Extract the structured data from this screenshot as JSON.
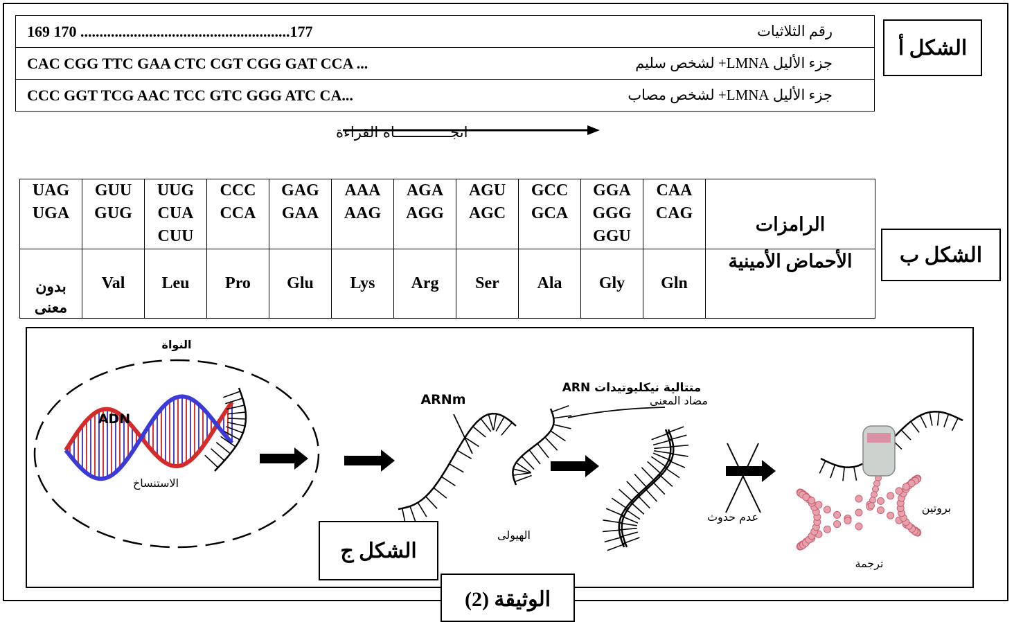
{
  "figure_a": {
    "label": "الشكل أ",
    "rows": [
      [
        "169   170 .......................................................177",
        "رقم الثلاثيات"
      ],
      [
        "CAC CGG TTC GAA CTC CGT CGG GAT CCA ...",
        "جزء الأليل LMNA+ لشخص سليم"
      ],
      [
        "CCC GGT TCG AAC TCC GTC GGG ATC CA...",
        "جزء الأليل LMNA+ لشخص مصاب"
      ]
    ],
    "reading_direction": "اتجـــــــــــــاه القراءة"
  },
  "figure_b": {
    "label": "الشكل ب",
    "codons_header": "الرامزات",
    "amino_header": "الأحماض الأمينية",
    "columns": [
      {
        "codons": [
          "UAG",
          "UGA"
        ],
        "amino": "بدون معنى"
      },
      {
        "codons": [
          "GUU",
          "GUG"
        ],
        "amino": "Val"
      },
      {
        "codons": [
          "UUG",
          "CUA",
          "CUU"
        ],
        "amino": "Leu"
      },
      {
        "codons": [
          "CCC",
          "CCA"
        ],
        "amino": "Pro"
      },
      {
        "codons": [
          "GAG",
          "GAA"
        ],
        "amino": "Glu"
      },
      {
        "codons": [
          "AAA",
          "AAG"
        ],
        "amino": "Lys"
      },
      {
        "codons": [
          "AGA",
          "AGG"
        ],
        "amino": "Arg"
      },
      {
        "codons": [
          "AGU",
          "AGC"
        ],
        "amino": "Ser"
      },
      {
        "codons": [
          "GCC",
          "GCA"
        ],
        "amino": "Ala"
      },
      {
        "codons": [
          "GGA",
          "GGG",
          "GGU"
        ],
        "amino": "Gly"
      },
      {
        "codons": [
          "CAA",
          "CAG"
        ],
        "amino": "Gln"
      }
    ]
  },
  "figure_c": {
    "label": "الشكل ج",
    "nucleus": "النواة",
    "dna": "ADN",
    "transcription": "الاستنساخ",
    "mrna": "ARNm",
    "antisense_line1": "متتالية نيكليوتيدات ARN",
    "antisense_line2": "مضاد المعنى",
    "cytoplasm": "الهيولى",
    "no_occurrence": "عدم حدوث",
    "protein": "بروتين",
    "translation": "ترجمة"
  },
  "document_label": "الوثيقة (2)"
}
